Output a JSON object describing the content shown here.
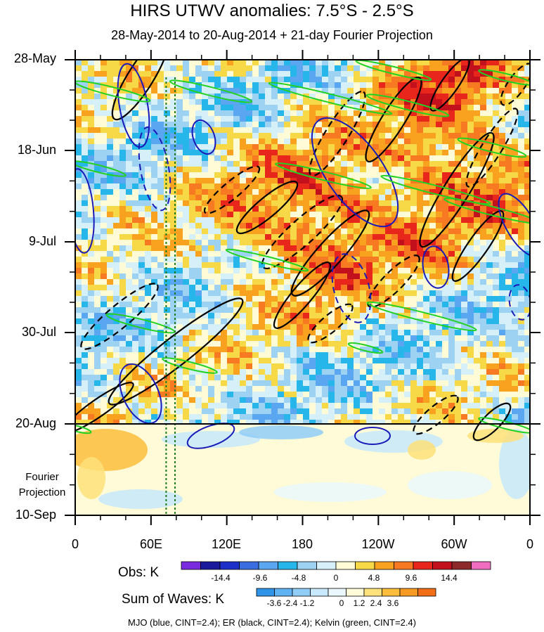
{
  "title": "HIRS UTWV anomalies: 7.5°S - 2.5°S",
  "subtitle": "28-May-2014 to 20-Aug-2014 + 21-day Fourier Projection",
  "y_tick_labels": [
    "28-May",
    "18-Jun",
    "9-Jul",
    "30-Jul",
    "20-Aug",
    "10-Sep"
  ],
  "x_tick_labels": [
    "0",
    "60E",
    "120E",
    "180",
    "120W",
    "60W",
    "0"
  ],
  "fourier_label": [
    "Fourier",
    "Projection"
  ],
  "obs_colorbar": {
    "title": "Obs: K",
    "labels": [
      "-14.4",
      "-9.6",
      "-4.8",
      "0",
      "4.8",
      "9.6",
      "14.4"
    ],
    "colors": [
      "#7a2be0",
      "#1a1a9c",
      "#1c2fc8",
      "#3a6de0",
      "#5aa6f0",
      "#27b6ea",
      "#9ed2f2",
      "#d6f0fa",
      "#fffbd6",
      "#f7d846",
      "#f9a21f",
      "#f77a22",
      "#e8261c",
      "#c2101c",
      "#8d2a2a",
      "#f06ec0"
    ]
  },
  "waves_colorbar": {
    "title": "Sum of Waves: K",
    "labels": [
      "-3.6",
      "-2.4",
      "-1.2",
      "0",
      "1.2",
      "2.4",
      "3.6"
    ],
    "colors": [
      "#2f93e8",
      "#5fb3f2",
      "#8fcdf7",
      "#c7e9fb",
      "#eaf8fd",
      "#fffbd8",
      "#fde17a",
      "#fbbd3c",
      "#f79a24",
      "#f16d16"
    ]
  },
  "footer": "MJO (blue, CINT=2.4); ER (black, CINT=2.4); Kelvin (green, CINT=2.4)",
  "chart_data": {
    "type": "heatmap",
    "title": "HIRS UTWV anomalies: 7.5°S - 2.5°S",
    "subtitle": "28-May-2014 to 20-Aug-2014 + 21-day Fourier Projection",
    "x_axis": {
      "ticks": [
        "0",
        "60E",
        "120E",
        "180",
        "120W",
        "60W",
        "0"
      ],
      "range_deg_east": [
        0,
        360
      ]
    },
    "y_axis": {
      "ticks": [
        "28-May",
        "18-Jun",
        "9-Jul",
        "30-Jul",
        "20-Aug",
        "10-Sep"
      ],
      "range": [
        "2014-05-28",
        "2014-09-10"
      ],
      "inverted": true
    },
    "observation_end": "2014-08-20",
    "projection_days": 21,
    "contour_interval_obs_K": 4.8,
    "contour_interval_waves_K": 1.2,
    "overlays": [
      {
        "name": "MJO",
        "color": "blue",
        "cint": 2.4
      },
      {
        "name": "ER",
        "color": "black",
        "cint": 2.4
      },
      {
        "name": "Kelvin",
        "color": "green",
        "cint": 2.4
      }
    ],
    "reference_lines_deg_east": [
      72,
      79
    ]
  }
}
